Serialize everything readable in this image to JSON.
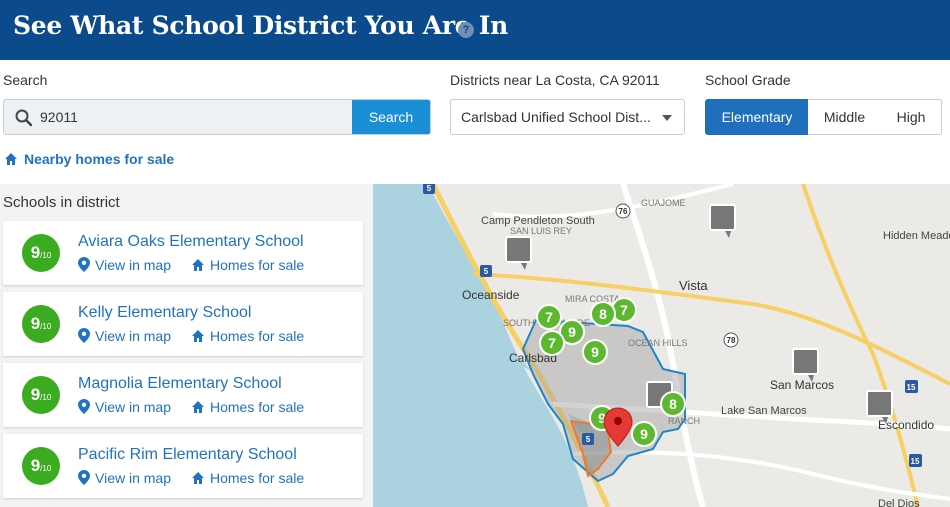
{
  "header": {
    "title": "See What School District You Are In",
    "help_glyph": "?"
  },
  "search": {
    "label": "Search",
    "value": "92011",
    "button": "Search"
  },
  "districts": {
    "label": "Districts near La Costa, CA 92011",
    "selected": "Carlsbad Unified School Dist..."
  },
  "grade": {
    "label": "School Grade",
    "options": [
      "Elementary",
      "Middle",
      "High"
    ],
    "selected": "Elementary"
  },
  "nearby_link": "Nearby homes for sale",
  "schools": {
    "title": "Schools in district",
    "items": [
      {
        "rating": "9",
        "scale": "/10",
        "name": "Aviara Oaks Elementary School",
        "view": "View in map",
        "homes": "Homes for sale"
      },
      {
        "rating": "9",
        "scale": "/10",
        "name": "Kelly Elementary School",
        "view": "View in map",
        "homes": "Homes for sale"
      },
      {
        "rating": "9",
        "scale": "/10",
        "name": "Magnolia Elementary School",
        "view": "View in map",
        "homes": "Homes for sale"
      },
      {
        "rating": "9",
        "scale": "/10",
        "name": "Pacific Rim Elementary School",
        "view": "View in map",
        "homes": "Homes for sale"
      }
    ]
  },
  "map": {
    "places": [
      "Camp Pendleton South",
      "SAN LUIS REY",
      "GUAJOME",
      "Hidden Meadows",
      "Oceanside",
      "MIRA COSTA",
      "Vista",
      "SOUTH OCEANSIDE",
      "OCEAN HILLS",
      "Carlsbad",
      "San Marcos",
      "Lake San Marcos",
      "Escondido",
      "RANCH",
      "Del Dios"
    ],
    "shields": [
      "5",
      "76",
      "5",
      "78",
      "15",
      "5",
      "15"
    ],
    "green_pins": [
      "7",
      "7",
      "8",
      "9",
      "7",
      "9",
      "9",
      "8",
      "9"
    ],
    "colors": {
      "water": "#aad3df",
      "land": "#eceae6",
      "district": "#1b86c9",
      "rating": "#3bab1f",
      "pin": "#e53935"
    }
  }
}
